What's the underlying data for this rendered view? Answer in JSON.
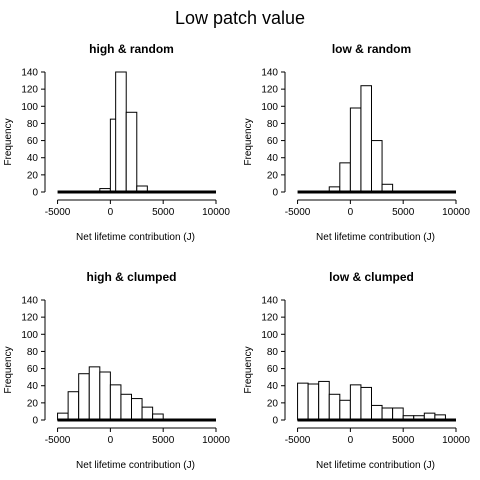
{
  "title": "Low patch value",
  "chart_data": [
    {
      "type": "bar",
      "title": "high & random",
      "xlabel": "Net lifetime contribution (J)",
      "ylabel": "Frequency",
      "xlim": [
        -6000,
        10000
      ],
      "ylim": [
        0,
        140
      ],
      "xticks": [
        -5000,
        0,
        5000,
        10000
      ],
      "yticks": [
        0,
        20,
        40,
        60,
        80,
        100,
        120,
        140
      ],
      "bin_width": 1000,
      "bins": [
        {
          "x0": -1000,
          "value": 4
        },
        {
          "x0": 0,
          "value": 85
        },
        {
          "x0": 500,
          "value": 140
        },
        {
          "x0": 1500,
          "value": 93
        },
        {
          "x0": 2500,
          "value": 7
        }
      ]
    },
    {
      "type": "bar",
      "title": "low & random",
      "xlabel": "Net lifetime contribution (J)",
      "ylabel": "Frequency",
      "xlim": [
        -6000,
        10000
      ],
      "ylim": [
        0,
        140
      ],
      "xticks": [
        -5000,
        0,
        5000,
        10000
      ],
      "yticks": [
        0,
        20,
        40,
        60,
        80,
        100,
        120,
        140
      ],
      "bin_width": 1000,
      "bins": [
        {
          "x0": -2000,
          "value": 6
        },
        {
          "x0": -1000,
          "value": 34
        },
        {
          "x0": 0,
          "value": 98
        },
        {
          "x0": 1000,
          "value": 124
        },
        {
          "x0": 2000,
          "value": 60
        },
        {
          "x0": 3000,
          "value": 9
        }
      ]
    },
    {
      "type": "bar",
      "title": "high & clumped",
      "xlabel": "Net lifetime contribution (J)",
      "ylabel": "Frequency",
      "xlim": [
        -6000,
        10000
      ],
      "ylim": [
        0,
        140
      ],
      "xticks": [
        -5000,
        0,
        5000,
        10000
      ],
      "yticks": [
        0,
        20,
        40,
        60,
        80,
        100,
        120,
        140
      ],
      "bin_width": 1000,
      "bins": [
        {
          "x0": -5000,
          "value": 8
        },
        {
          "x0": -4000,
          "value": 33
        },
        {
          "x0": -3000,
          "value": 54
        },
        {
          "x0": -2000,
          "value": 62
        },
        {
          "x0": -1000,
          "value": 56
        },
        {
          "x0": 0,
          "value": 41
        },
        {
          "x0": 1000,
          "value": 30
        },
        {
          "x0": 2000,
          "value": 25
        },
        {
          "x0": 3000,
          "value": 15
        },
        {
          "x0": 4000,
          "value": 7
        }
      ]
    },
    {
      "type": "bar",
      "title": "low & clumped",
      "xlabel": "Net lifetime contribution (J)",
      "ylabel": "Frequency",
      "xlim": [
        -6000,
        10000
      ],
      "ylim": [
        0,
        140
      ],
      "xticks": [
        -5000,
        0,
        5000,
        10000
      ],
      "yticks": [
        0,
        20,
        40,
        60,
        80,
        100,
        120,
        140
      ],
      "bin_width": 1000,
      "bins": [
        {
          "x0": -5000,
          "value": 43
        },
        {
          "x0": -4000,
          "value": 42
        },
        {
          "x0": -3000,
          "value": 45
        },
        {
          "x0": -2000,
          "value": 30
        },
        {
          "x0": -1000,
          "value": 23
        },
        {
          "x0": 0,
          "value": 41
        },
        {
          "x0": 1000,
          "value": 38
        },
        {
          "x0": 2000,
          "value": 17
        },
        {
          "x0": 3000,
          "value": 14
        },
        {
          "x0": 4000,
          "value": 14
        },
        {
          "x0": 5000,
          "value": 5
        },
        {
          "x0": 6000,
          "value": 5
        },
        {
          "x0": 7000,
          "value": 8
        },
        {
          "x0": 8000,
          "value": 6
        }
      ]
    }
  ]
}
